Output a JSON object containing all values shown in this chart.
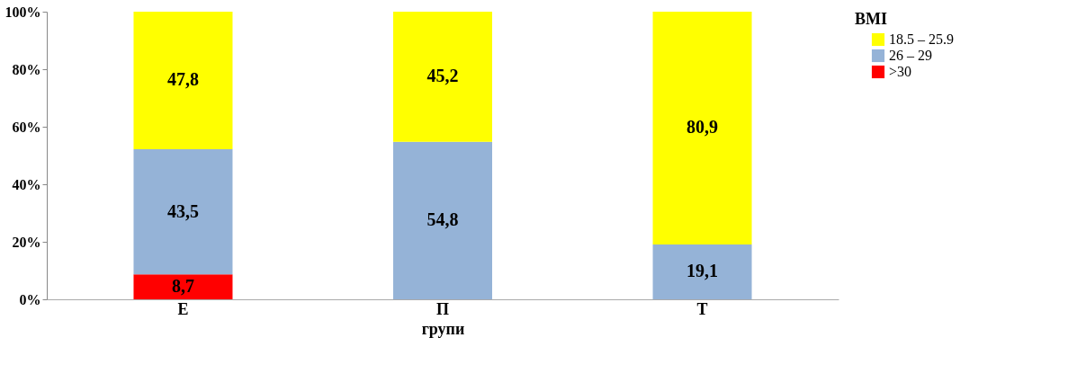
{
  "chart_data": {
    "type": "bar",
    "stacked": true,
    "categories": [
      "Е",
      "П",
      "Т"
    ],
    "xlabel": "групи",
    "legend_title": "ВМI",
    "legend": "right",
    "ylim": [
      0,
      100
    ],
    "yticks": [
      {
        "value": 0,
        "label": "0%"
      },
      {
        "value": 20,
        "label": "20%"
      },
      {
        "value": 40,
        "label": "40%"
      },
      {
        "value": 60,
        "label": "60%"
      },
      {
        "value": 80,
        "label": "80%"
      },
      {
        "value": 100,
        "label": "100%"
      }
    ],
    "series": [
      {
        "name": ">30",
        "color": "#ff0000",
        "values": [
          8.7,
          null,
          null
        ],
        "value_labels": [
          "8,7",
          null,
          null
        ]
      },
      {
        "name": "26 – 29",
        "color": "#95b3d7",
        "values": [
          43.5,
          54.8,
          19.1
        ],
        "value_labels": [
          "43,5",
          "54,8",
          "19,1"
        ]
      },
      {
        "name": "18.5 – 25.9",
        "color": "#ffff00",
        "values": [
          47.8,
          45.2,
          80.9
        ],
        "value_labels": [
          "47,8",
          "45,2",
          "80,9"
        ]
      }
    ]
  }
}
